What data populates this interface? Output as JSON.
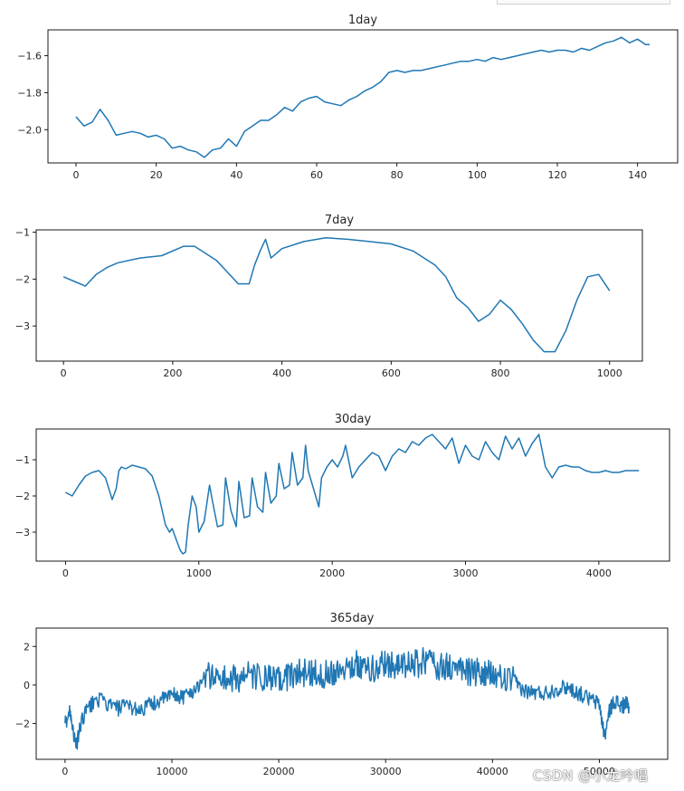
{
  "watermark": "CSDN @小龙吟唱",
  "colors": {
    "line": "#1f77b4",
    "axis": "#000000",
    "text": "#262626"
  },
  "chart_data": [
    {
      "type": "line",
      "title": "1day",
      "xlim": [
        -7,
        150
      ],
      "ylim": [
        -2.18,
        -1.46
      ],
      "xticks": [
        0,
        20,
        40,
        60,
        80,
        100,
        120,
        140
      ],
      "yticks": [
        -1.6,
        -1.8,
        -2.0
      ],
      "ytick_labels": [
        "−1.6",
        "−1.8",
        "−2.0"
      ],
      "series": [
        {
          "x": [
            0,
            2,
            4,
            6,
            8,
            10,
            12,
            14,
            16,
            18,
            20,
            22,
            24,
            26,
            28,
            30,
            32,
            34,
            36,
            38,
            40,
            42,
            44,
            46,
            48,
            50,
            52,
            54,
            56,
            58,
            60,
            62,
            64,
            66,
            68,
            70,
            72,
            74,
            76,
            78,
            80,
            82,
            84,
            86,
            88,
            90,
            92,
            94,
            96,
            98,
            100,
            102,
            104,
            106,
            108,
            110,
            112,
            114,
            116,
            118,
            120,
            122,
            124,
            126,
            128,
            130,
            132,
            134,
            136,
            138,
            140,
            142,
            143
          ],
          "y": [
            -1.93,
            -1.98,
            -1.96,
            -1.89,
            -1.95,
            -2.03,
            -2.02,
            -2.01,
            -2.02,
            -2.04,
            -2.03,
            -2.05,
            -2.1,
            -2.09,
            -2.11,
            -2.12,
            -2.15,
            -2.11,
            -2.1,
            -2.05,
            -2.09,
            -2.01,
            -1.98,
            -1.95,
            -1.95,
            -1.92,
            -1.88,
            -1.9,
            -1.85,
            -1.83,
            -1.82,
            -1.85,
            -1.86,
            -1.87,
            -1.84,
            -1.82,
            -1.79,
            -1.77,
            -1.74,
            -1.69,
            -1.68,
            -1.69,
            -1.68,
            -1.68,
            -1.67,
            -1.66,
            -1.65,
            -1.64,
            -1.63,
            -1.63,
            -1.62,
            -1.63,
            -1.61,
            -1.62,
            -1.61,
            -1.6,
            -1.59,
            -1.58,
            -1.57,
            -1.58,
            -1.57,
            -1.57,
            -1.58,
            -1.56,
            -1.57,
            -1.55,
            -1.53,
            -1.52,
            -1.5,
            -1.53,
            -1.51,
            -1.54,
            -1.54
          ]
        }
      ]
    },
    {
      "type": "line",
      "title": "7day",
      "xlim": [
        -50,
        1060
      ],
      "ylim": [
        -3.75,
        -0.95
      ],
      "xticks": [
        0,
        200,
        400,
        600,
        800,
        1000
      ],
      "yticks": [
        -1,
        -2,
        -3
      ],
      "ytick_labels": [
        "−1",
        "−2",
        "−3"
      ],
      "series": [
        {
          "x": [
            0,
            20,
            40,
            60,
            80,
            100,
            140,
            180,
            220,
            240,
            260,
            280,
            300,
            320,
            340,
            350,
            360,
            370,
            380,
            390,
            400,
            440,
            480,
            520,
            560,
            600,
            640,
            680,
            700,
            720,
            740,
            760,
            780,
            800,
            820,
            840,
            860,
            880,
            900,
            920,
            940,
            960,
            980,
            1000
          ],
          "y": [
            -1.95,
            -2.05,
            -2.15,
            -1.9,
            -1.75,
            -1.65,
            -1.55,
            -1.5,
            -1.3,
            -1.3,
            -1.45,
            -1.6,
            -1.85,
            -2.1,
            -2.1,
            -1.7,
            -1.4,
            -1.15,
            -1.55,
            -1.45,
            -1.35,
            -1.2,
            -1.12,
            -1.15,
            -1.2,
            -1.25,
            -1.4,
            -1.7,
            -1.95,
            -2.4,
            -2.6,
            -2.9,
            -2.75,
            -2.45,
            -2.65,
            -2.95,
            -3.3,
            -3.55,
            -3.55,
            -3.1,
            -2.45,
            -1.95,
            -1.9,
            -2.25
          ]
        }
      ]
    },
    {
      "type": "line",
      "title": "30day",
      "xlim": [
        -220,
        4530
      ],
      "ylim": [
        -3.8,
        -0.15
      ],
      "xticks": [
        0,
        1000,
        2000,
        3000,
        4000
      ],
      "yticks": [
        -1,
        -2,
        -3
      ],
      "ytick_labels": [
        "−1",
        "−2",
        "−3"
      ],
      "series": [
        {
          "x": [
            0,
            50,
            100,
            150,
            200,
            250,
            300,
            350,
            380,
            400,
            420,
            450,
            500,
            550,
            600,
            650,
            700,
            750,
            780,
            800,
            830,
            860,
            880,
            900,
            920,
            950,
            980,
            1000,
            1040,
            1080,
            1100,
            1140,
            1180,
            1200,
            1240,
            1280,
            1300,
            1340,
            1380,
            1400,
            1440,
            1480,
            1500,
            1540,
            1580,
            1600,
            1640,
            1680,
            1700,
            1740,
            1780,
            1800,
            1820,
            1860,
            1900,
            1920,
            1960,
            2000,
            2040,
            2080,
            2100,
            2150,
            2200,
            2250,
            2300,
            2350,
            2400,
            2450,
            2500,
            2550,
            2600,
            2650,
            2700,
            2750,
            2800,
            2850,
            2900,
            2950,
            3000,
            3050,
            3100,
            3150,
            3200,
            3250,
            3300,
            3350,
            3400,
            3450,
            3500,
            3550,
            3600,
            3650,
            3700,
            3750,
            3800,
            3850,
            3900,
            3950,
            4000,
            4050,
            4100,
            4150,
            4200,
            4250,
            4300
          ],
          "y": [
            -1.9,
            -2.0,
            -1.7,
            -1.45,
            -1.35,
            -1.3,
            -1.5,
            -2.1,
            -1.8,
            -1.3,
            -1.2,
            -1.25,
            -1.15,
            -1.2,
            -1.25,
            -1.45,
            -2.0,
            -2.8,
            -3.0,
            -2.9,
            -3.2,
            -3.5,
            -3.6,
            -3.55,
            -2.8,
            -2.0,
            -2.3,
            -3.0,
            -2.7,
            -1.7,
            -2.1,
            -2.85,
            -2.8,
            -1.5,
            -2.4,
            -2.85,
            -1.6,
            -2.6,
            -2.55,
            -1.5,
            -2.3,
            -2.45,
            -1.35,
            -2.2,
            -2.0,
            -1.1,
            -1.8,
            -1.7,
            -0.8,
            -1.7,
            -1.5,
            -0.6,
            -1.3,
            -1.8,
            -2.3,
            -1.5,
            -1.2,
            -1.0,
            -1.2,
            -0.9,
            -0.6,
            -1.5,
            -1.2,
            -1.0,
            -0.8,
            -0.9,
            -1.3,
            -0.9,
            -0.7,
            -0.8,
            -0.5,
            -0.6,
            -0.4,
            -0.3,
            -0.5,
            -0.7,
            -0.4,
            -1.1,
            -0.6,
            -0.9,
            -1.0,
            -0.5,
            -0.8,
            -1.0,
            -0.35,
            -0.7,
            -0.4,
            -0.9,
            -0.55,
            -0.3,
            -1.2,
            -1.5,
            -1.2,
            -1.15,
            -1.2,
            -1.2,
            -1.3,
            -1.35,
            -1.35,
            -1.3,
            -1.35,
            -1.35,
            -1.3,
            -1.3,
            -1.3
          ]
        }
      ]
    },
    {
      "type": "line",
      "title": "365day",
      "xlim": [
        -2700,
        56400
      ],
      "ylim": [
        -3.85,
        2.95
      ],
      "xticks": [
        0,
        10000,
        20000,
        30000,
        40000,
        50000
      ],
      "yticks": [
        2,
        0,
        -2
      ],
      "ytick_labels": [
        "2",
        "0",
        "−2"
      ],
      "series": [
        {
          "x": [
            0,
            500,
            1000,
            1500,
            2000,
            3000,
            4000,
            5000,
            6000,
            7000,
            8000,
            9000,
            10000,
            11000,
            12000,
            13000,
            14000,
            15000,
            16000,
            17000,
            18000,
            19000,
            20000,
            21000,
            22000,
            23000,
            24000,
            25000,
            26000,
            27000,
            28000,
            29000,
            30000,
            31000,
            32000,
            33000,
            34000,
            35000,
            36000,
            37000,
            38000,
            39000,
            40000,
            41000,
            42000,
            43000,
            44000,
            45000,
            46000,
            47000,
            48000,
            49000,
            50000,
            50500,
            51000,
            51500,
            52000,
            52500,
            52800
          ],
          "y": [
            -2.0,
            -1.3,
            -3.3,
            -2.0,
            -1.3,
            -0.7,
            -1.0,
            -1.2,
            -1.1,
            -1.3,
            -1.0,
            -0.8,
            -0.5,
            -0.6,
            -0.3,
            0.4,
            0.5,
            0.3,
            0.3,
            0.5,
            0.4,
            0.3,
            0.2,
            0.5,
            0.6,
            0.7,
            0.5,
            0.7,
            0.9,
            1.1,
            0.9,
            0.8,
            1.2,
            1.0,
            1.0,
            1.1,
            1.3,
            1.0,
            0.9,
            0.8,
            0.7,
            0.6,
            0.5,
            0.3,
            0.2,
            -0.3,
            -0.4,
            -0.4,
            -0.2,
            -0.1,
            -0.4,
            -0.7,
            -1.0,
            -2.7,
            -1.2,
            -0.8,
            -1.1,
            -1.0,
            -1.2
          ]
        }
      ],
      "noise_amplitude": 0.75
    }
  ]
}
